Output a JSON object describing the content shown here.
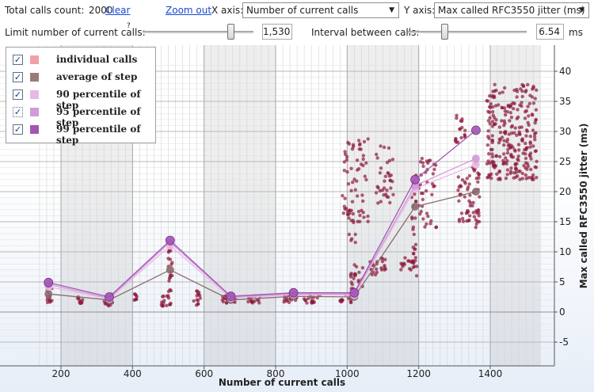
{
  "toolbar": {
    "total_calls_label": "Total calls count:",
    "total_calls_value": "2000",
    "clear_label": "Clear",
    "zoom_out_label": "Zoom out",
    "x_axis_label": "X axis:",
    "x_axis_selected": "Number of current calls",
    "y_axis_label": "Y axis:",
    "y_axis_selected": "Max called RFC3550 jitter (ms)",
    "limit_label": "Limit number of current calls:",
    "limit_help": "?",
    "limit_value": "1,530",
    "limit_slider_fraction": 0.82,
    "interval_label": "Interval between calls:",
    "interval_value": "6.54",
    "interval_unit": "ms",
    "interval_slider_fraction": 0.3
  },
  "legend": [
    {
      "label": "individual calls",
      "color": "#f2a0a8",
      "checked": true
    },
    {
      "label": "average of step",
      "color": "#9a7a7a",
      "checked": true
    },
    {
      "label": "90 percentile of step",
      "color": "#e7b9e7",
      "checked": true
    },
    {
      "label": "95 percentile of step",
      "color": "#d39ad8",
      "checked": true
    },
    {
      "label": "99 percentile of step",
      "color": "#a256b4",
      "checked": true
    }
  ],
  "chart_data": {
    "type": "scatter",
    "xlabel": "Number of current calls",
    "ylabel": "Max called RFC3550 jitter (ms)",
    "xlim": [
      120,
      1540
    ],
    "ylim": [
      -7,
      42
    ],
    "x_ticks": [
      200,
      400,
      600,
      800,
      1000,
      1200,
      1400
    ],
    "y_ticks": [
      -5,
      0,
      5,
      10,
      15,
      20,
      25,
      30,
      35,
      40
    ],
    "grid": true,
    "legend_position": "top-left",
    "shaded_bands": [
      [
        200,
        400
      ],
      [
        600,
        800
      ],
      [
        1000,
        1200
      ],
      [
        1400,
        1540
      ]
    ],
    "clusters": [
      {
        "x": [
          160,
          175
        ],
        "y": [
          1.5,
          4
        ],
        "n": 14
      },
      {
        "x": [
          245,
          265
        ],
        "y": [
          1.2,
          2.5
        ],
        "n": 12
      },
      {
        "x": [
          320,
          345
        ],
        "y": [
          1.0,
          3
        ],
        "n": 16
      },
      {
        "x": [
          405,
          415
        ],
        "y": [
          1.5,
          3
        ],
        "n": 8
      },
      {
        "x": [
          480,
          510
        ],
        "y": [
          1.0,
          3
        ],
        "n": 16
      },
      {
        "x": [
          500,
          512
        ],
        "y": [
          3,
          11
        ],
        "n": 20
      },
      {
        "x": [
          570,
          590
        ],
        "y": [
          1.0,
          3.5
        ],
        "n": 14
      },
      {
        "x": [
          650,
          690
        ],
        "y": [
          1.5,
          3
        ],
        "n": 18
      },
      {
        "x": [
          720,
          760
        ],
        "y": [
          1.5,
          2.7
        ],
        "n": 16
      },
      {
        "x": [
          820,
          860
        ],
        "y": [
          1.5,
          3
        ],
        "n": 18
      },
      {
        "x": [
          880,
          925
        ],
        "y": [
          1.5,
          3
        ],
        "n": 18
      },
      {
        "x": [
          980,
          1030
        ],
        "y": [
          1.5,
          3
        ],
        "n": 18
      },
      {
        "x": [
          1005,
          1020
        ],
        "y": [
          3,
          7
        ],
        "n": 8
      },
      {
        "x": [
          1020,
          1050
        ],
        "y": [
          4,
          9
        ],
        "n": 12
      },
      {
        "x": [
          1060,
          1085
        ],
        "y": [
          6,
          9
        ],
        "n": 14
      },
      {
        "x": [
          1095,
          1110
        ],
        "y": [
          7,
          9
        ],
        "n": 10
      },
      {
        "x": [
          1150,
          1190
        ],
        "y": [
          7,
          9
        ],
        "n": 14
      },
      {
        "x": [
          1180,
          1195
        ],
        "y": [
          6,
          23
        ],
        "n": 30
      },
      {
        "x": [
          985,
          1060
        ],
        "y": [
          15,
          29
        ],
        "n": 60
      },
      {
        "x": [
          1080,
          1130
        ],
        "y": [
          18,
          28
        ],
        "n": 35
      },
      {
        "x": [
          1000,
          1025
        ],
        "y": [
          11,
          17
        ],
        "n": 12
      },
      {
        "x": [
          1200,
          1250
        ],
        "y": [
          14,
          26
        ],
        "n": 40
      },
      {
        "x": [
          1310,
          1345
        ],
        "y": [
          15,
          23
        ],
        "n": 35
      },
      {
        "x": [
          1350,
          1370
        ],
        "y": [
          14,
          26
        ],
        "n": 30
      },
      {
        "x": [
          1300,
          1330
        ],
        "y": [
          28,
          33
        ],
        "n": 18
      },
      {
        "x": [
          1390,
          1530
        ],
        "y": [
          22,
          38
        ],
        "n": 260
      }
    ],
    "series": [
      {
        "name": "average of step",
        "color": "#8a6e6e",
        "x": [
          165,
          335,
          505,
          675,
          850,
          1020,
          1190,
          1360
        ],
        "y": [
          3,
          2,
          7,
          2,
          2.6,
          2.5,
          17.5,
          20
        ]
      },
      {
        "name": "90 percentile of step",
        "color": "#e7b9e7",
        "x": [
          165,
          335,
          505,
          675,
          850,
          1020,
          1190,
          1360
        ],
        "y": [
          4.2,
          2.2,
          11,
          2.3,
          2.9,
          2.8,
          20.5,
          24.5
        ]
      },
      {
        "name": "95 percentile of step",
        "color": "#d39ad8",
        "x": [
          165,
          335,
          505,
          675,
          850,
          1020,
          1190,
          1360
        ],
        "y": [
          4.6,
          2.3,
          11.6,
          2.5,
          3.0,
          3.0,
          21,
          25.5
        ]
      },
      {
        "name": "99 percentile of step",
        "color": "#a256b4",
        "x": [
          165,
          335,
          505,
          675,
          850,
          1020,
          1190,
          1360
        ],
        "y": [
          4.9,
          2.5,
          11.9,
          2.6,
          3.2,
          3.2,
          22,
          30.2
        ]
      }
    ]
  }
}
